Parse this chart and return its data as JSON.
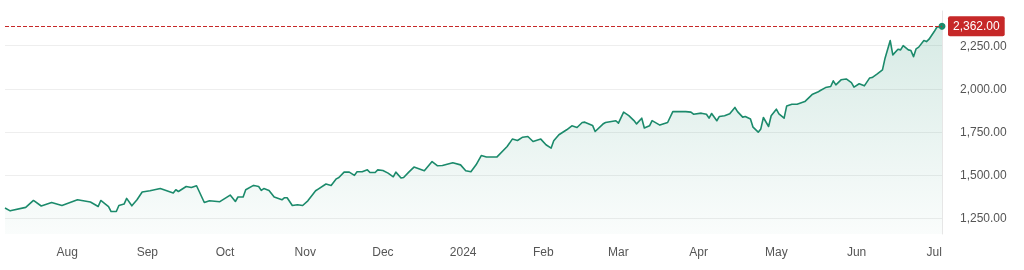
{
  "chart_data": {
    "type": "area",
    "x": [
      "2023-07-08",
      "2023-07-10",
      "2023-07-16",
      "2023-07-19",
      "2023-07-22",
      "2023-07-26",
      "2023-07-30",
      "2023-08-05",
      "2023-08-10",
      "2023-08-13",
      "2023-08-14",
      "2023-08-17",
      "2023-08-18",
      "2023-08-20",
      "2023-08-21",
      "2023-08-23",
      "2023-08-24",
      "2023-08-26",
      "2023-08-28",
      "2023-08-30",
      "2023-09-02",
      "2023-09-06",
      "2023-09-11",
      "2023-09-12",
      "2023-09-13",
      "2023-09-16",
      "2023-09-18",
      "2023-09-20",
      "2023-09-23",
      "2023-09-25",
      "2023-09-29",
      "2023-10-03",
      "2023-10-05",
      "2023-10-06",
      "2023-10-08",
      "2023-10-09",
      "2023-10-12",
      "2023-10-14",
      "2023-10-15",
      "2023-10-16",
      "2023-10-18",
      "2023-10-20",
      "2023-10-23",
      "2023-10-24",
      "2023-10-25",
      "2023-10-27",
      "2023-10-29",
      "2023-10-31",
      "2023-11-02",
      "2023-11-05",
      "2023-11-06",
      "2023-11-09",
      "2023-11-11",
      "2023-11-13",
      "2023-11-14",
      "2023-11-16",
      "2023-11-18",
      "2023-11-20",
      "2023-11-21",
      "2023-11-23",
      "2023-11-25",
      "2023-11-26",
      "2023-11-28",
      "2023-11-29",
      "2023-12-01",
      "2023-12-03",
      "2023-12-05",
      "2023-12-06",
      "2023-12-08",
      "2023-12-09",
      "2023-12-11",
      "2023-12-13",
      "2023-12-17",
      "2023-12-20",
      "2023-12-22",
      "2023-12-24",
      "2023-12-28",
      "2023-12-31",
      "2024-01-02",
      "2024-01-04",
      "2024-01-06",
      "2024-01-08",
      "2024-01-10",
      "2024-01-14",
      "2024-01-18",
      "2024-01-20",
      "2024-01-22",
      "2024-01-24",
      "2024-01-26",
      "2024-01-28",
      "2024-01-31",
      "2024-02-02",
      "2024-02-04",
      "2024-02-05",
      "2024-02-07",
      "2024-02-10",
      "2024-02-12",
      "2024-02-14",
      "2024-02-16",
      "2024-02-17",
      "2024-02-20",
      "2024-02-21",
      "2024-02-24",
      "2024-02-25",
      "2024-02-29",
      "2024-03-01",
      "2024-03-03",
      "2024-03-05",
      "2024-03-07",
      "2024-03-08",
      "2024-03-10",
      "2024-03-11",
      "2024-03-13",
      "2024-03-14",
      "2024-03-17",
      "2024-03-20",
      "2024-03-22",
      "2024-03-27",
      "2024-03-29",
      "2024-03-30",
      "2024-04-02",
      "2024-04-04",
      "2024-04-05",
      "2024-04-06",
      "2024-04-08",
      "2024-04-09",
      "2024-04-11",
      "2024-04-13",
      "2024-04-15",
      "2024-04-16",
      "2024-04-18",
      "2024-04-19",
      "2024-04-21",
      "2024-04-22",
      "2024-04-24",
      "2024-04-25",
      "2024-04-26",
      "2024-04-28",
      "2024-04-29",
      "2024-05-01",
      "2024-05-02",
      "2024-05-04",
      "2024-05-05",
      "2024-05-07",
      "2024-05-09",
      "2024-05-12",
      "2024-05-13",
      "2024-05-15",
      "2024-05-17",
      "2024-05-18",
      "2024-05-20",
      "2024-05-22",
      "2024-05-23",
      "2024-05-24",
      "2024-05-26",
      "2024-05-28",
      "2024-05-30",
      "2024-05-31",
      "2024-06-02",
      "2024-06-04",
      "2024-06-06",
      "2024-06-07",
      "2024-06-09",
      "2024-06-11",
      "2024-06-12",
      "2024-06-14",
      "2024-06-15",
      "2024-06-17",
      "2024-06-18",
      "2024-06-19",
      "2024-06-21",
      "2024-06-22",
      "2024-06-23",
      "2024-06-24",
      "2024-06-25",
      "2024-06-27",
      "2024-06-28",
      "2024-06-29",
      "2024-07-01",
      "2024-07-02",
      "2024-07-04"
    ],
    "series": [
      {
        "color": "#1b8a6b",
        "values": [
          1310,
          1294,
          1314,
          1354,
          1322,
          1342,
          1325,
          1358,
          1345,
          1319,
          1354,
          1319,
          1290,
          1290,
          1325,
          1333,
          1366,
          1323,
          1358,
          1403,
          1410,
          1423,
          1397,
          1416,
          1406,
          1435,
          1429,
          1439,
          1342,
          1352,
          1347,
          1385,
          1348,
          1374,
          1374,
          1416,
          1441,
          1435,
          1412,
          1423,
          1412,
          1374,
          1358,
          1370,
          1370,
          1325,
          1329,
          1325,
          1352,
          1410,
          1420,
          1449,
          1441,
          1479,
          1487,
          1518,
          1518,
          1499,
          1520,
          1520,
          1531,
          1516,
          1516,
          1531,
          1527,
          1512,
          1491,
          1518,
          1484,
          1487,
          1518,
          1547,
          1526,
          1579,
          1555,
          1556,
          1572,
          1560,
          1526,
          1520,
          1560,
          1614,
          1605,
          1605,
          1666,
          1709,
          1701,
          1720,
          1724,
          1695,
          1709,
          1676,
          1657,
          1699,
          1734,
          1763,
          1786,
          1776,
          1805,
          1807,
          1788,
          1753,
          1796,
          1805,
          1815,
          1801,
          1865,
          1845,
          1816,
          1797,
          1830,
          1773,
          1786,
          1816,
          1790,
          1805,
          1868,
          1868,
          1865,
          1853,
          1859,
          1853,
          1830,
          1857,
          1815,
          1840,
          1844,
          1855,
          1892,
          1868,
          1836,
          1840,
          1825,
          1778,
          1749,
          1768,
          1834,
          1782,
          1844,
          1882,
          1855,
          1830,
          1901,
          1911,
          1911,
          1926,
          1940,
          1969,
          1981,
          1990,
          2007,
          2013,
          2046,
          2023,
          2052,
          2057,
          2036,
          2010,
          2029,
          2017,
          2062,
          2065,
          2086,
          2109,
          2177,
          2279,
          2196,
          2229,
          2225,
          2250,
          2225,
          2221,
          2186,
          2231,
          2241,
          2279,
          2273,
          2287,
          2331,
          2356,
          2362
        ]
      }
    ],
    "xlim": [
      "2023-07-08",
      "2024-07-04"
    ],
    "xticks": [
      {
        "value": "2023-08-01",
        "label": "Aug"
      },
      {
        "value": "2023-09-01",
        "label": "Sep"
      },
      {
        "value": "2023-10-01",
        "label": "Oct"
      },
      {
        "value": "2023-11-01",
        "label": "Nov"
      },
      {
        "value": "2023-12-01",
        "label": "Dec"
      },
      {
        "value": "2024-01-01",
        "label": "2024"
      },
      {
        "value": "2024-02-01",
        "label": "Feb"
      },
      {
        "value": "2024-03-01",
        "label": "Mar"
      },
      {
        "value": "2024-04-01",
        "label": "Apr"
      },
      {
        "value": "2024-05-01",
        "label": "May"
      },
      {
        "value": "2024-06-01",
        "label": "Jun"
      },
      {
        "value": "2024-07-01",
        "label": "Jul"
      }
    ],
    "ylim": [
      1160,
      2450
    ],
    "yticks": [
      {
        "value": 1250,
        "label": "1,250.00"
      },
      {
        "value": 1500,
        "label": "1,500.00"
      },
      {
        "value": 1750,
        "label": "1,750.00"
      },
      {
        "value": 2000,
        "label": "2,000.00"
      },
      {
        "value": 2250,
        "label": "2,250.00"
      }
    ],
    "grid": "y",
    "ref_lines": [
      {
        "axis": "y",
        "value": 2362,
        "label": "2,362.00",
        "color": "#c62828",
        "line_style": "dashed"
      }
    ]
  }
}
